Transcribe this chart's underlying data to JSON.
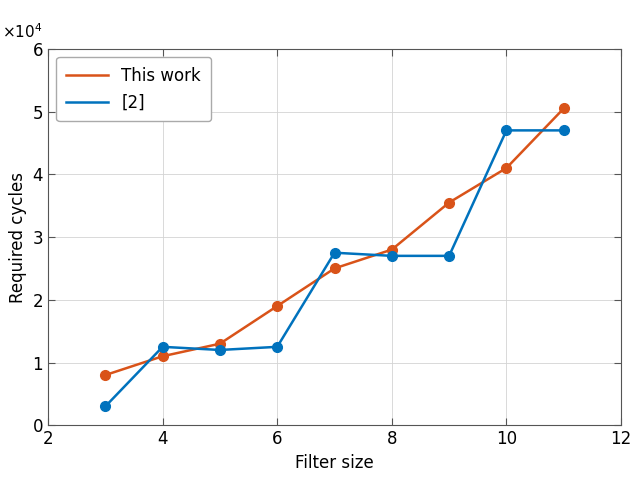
{
  "this_work_x": [
    3,
    4,
    5,
    6,
    7,
    8,
    9,
    10,
    11
  ],
  "this_work_y": [
    8000,
    11000,
    13000,
    19000,
    25000,
    28000,
    35500,
    41000,
    50500
  ],
  "ref2_x": [
    3,
    4,
    5,
    6,
    7,
    8,
    9,
    10,
    11
  ],
  "ref2_y": [
    3000,
    12500,
    12000,
    12500,
    27500,
    27000,
    27000,
    47000,
    47000
  ],
  "this_work_color": "#D95319",
  "ref2_color": "#0072BD",
  "this_work_label": "This work",
  "ref2_label": "[2]",
  "xlabel": "Filter size",
  "ylabel": "Required cycles",
  "xlim": [
    2,
    12
  ],
  "ylim": [
    0,
    60000
  ],
  "xticks": [
    2,
    4,
    6,
    8,
    10,
    12
  ],
  "yticks": [
    0,
    10000,
    20000,
    30000,
    40000,
    50000,
    60000
  ],
  "marker": "o",
  "linewidth": 1.8,
  "markersize": 7,
  "grid_color": "#D3D3D3",
  "legend_loc": "upper left",
  "bg_color": "#FFFFFF",
  "font_size": 12
}
